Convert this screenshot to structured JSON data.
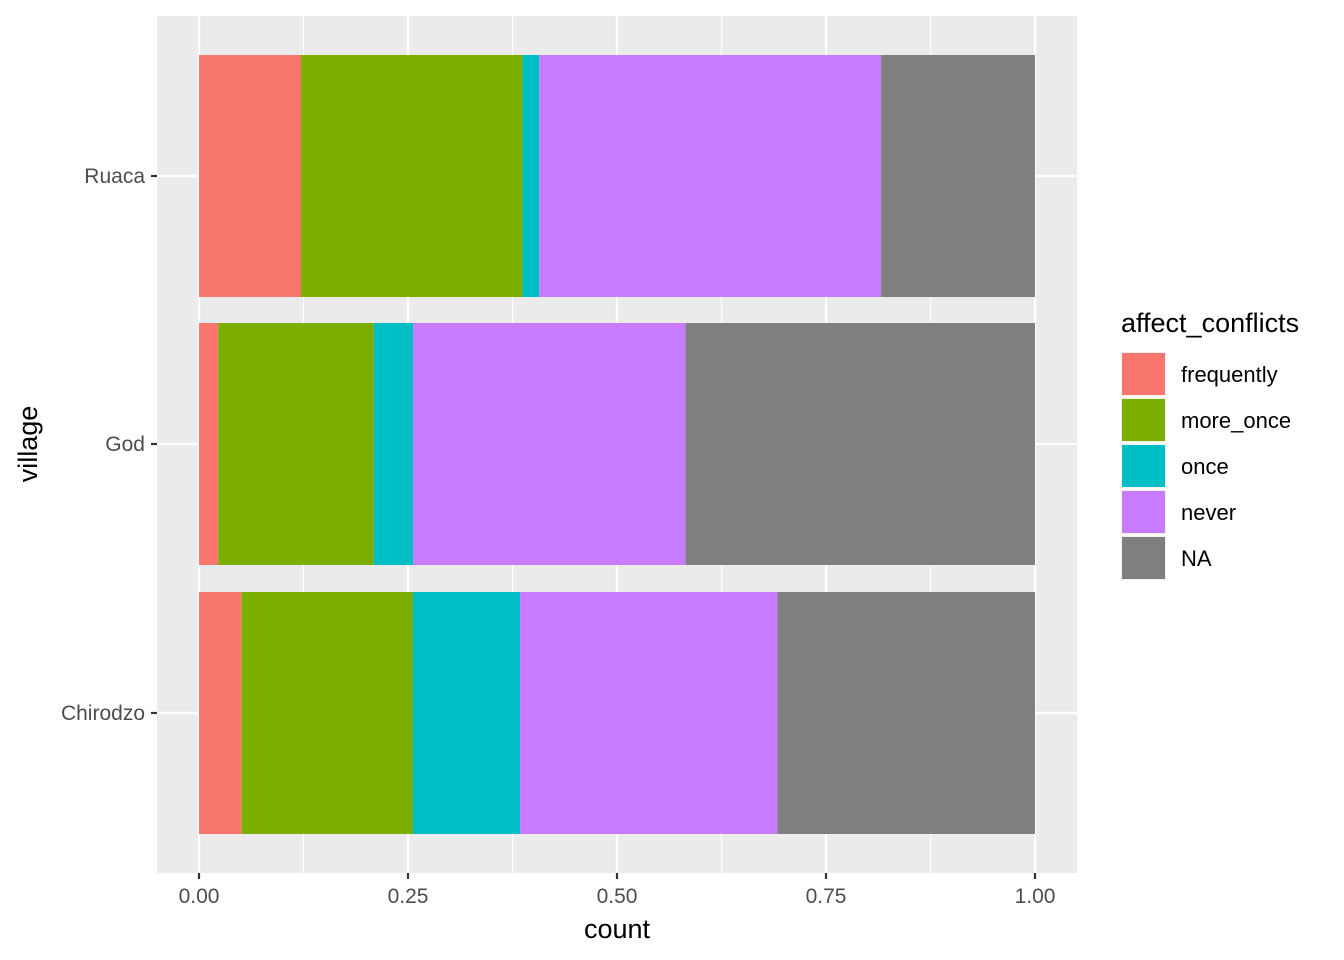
{
  "chart_data": {
    "type": "bar",
    "orientation": "horizontal",
    "stacked": true,
    "position": "fill",
    "xlabel": "count",
    "ylabel": "village",
    "xlim": [
      0,
      1
    ],
    "x_ticks": [
      0,
      0.25,
      0.5,
      0.75,
      1
    ],
    "x_tick_labels": [
      "0.00",
      "0.25",
      "0.50",
      "0.75",
      "1.00"
    ],
    "categories": [
      "Ruaca",
      "God",
      "Chirodzo"
    ],
    "legend_title": "affect_conflicts",
    "legend_position": "right",
    "grid": true,
    "series": [
      {
        "name": "frequently",
        "color": "#F8766D",
        "values": [
          0.122,
          0.023,
          0.051
        ]
      },
      {
        "name": "more_once",
        "color": "#7CAE00",
        "values": [
          0.265,
          0.186,
          0.205
        ]
      },
      {
        "name": "once",
        "color": "#00BFC4",
        "values": [
          0.02,
          0.047,
          0.128
        ]
      },
      {
        "name": "never",
        "color": "#C77CFF",
        "values": [
          0.409,
          0.326,
          0.308
        ]
      },
      {
        "name": "NA",
        "color": "#7F7F7F",
        "values": [
          0.184,
          0.418,
          0.308
        ]
      }
    ]
  }
}
